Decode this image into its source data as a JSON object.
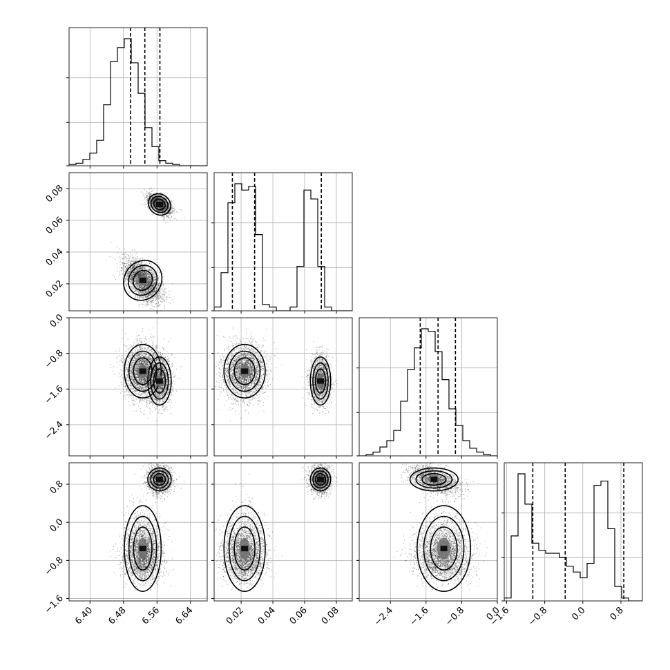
{
  "chart_data": {
    "type": "corner",
    "grid": true,
    "params": [
      {
        "ticks": [
          6.4,
          6.48,
          6.56,
          6.64
        ],
        "tick_labels": [
          "6.40",
          "6.48",
          "6.56",
          "6.64"
        ],
        "range": [
          6.35,
          6.68
        ],
        "quantiles": [
          6.497,
          6.531,
          6.567
        ],
        "hist": {
          "edges_start": 6.35,
          "bin_width": 0.0165,
          "counts": [
            1,
            2,
            5,
            10,
            20,
            48,
            82,
            93,
            100,
            81,
            57,
            30,
            15,
            4,
            2,
            1,
            0,
            0,
            0,
            0
          ]
        }
      },
      {
        "ticks": [
          0.02,
          0.04,
          0.06,
          0.08
        ],
        "tick_labels": [
          "0.02",
          "0.04",
          "0.06",
          "0.08"
        ],
        "range": [
          0.003,
          0.09
        ],
        "quantiles": [
          0.0145,
          0.0285,
          0.0705
        ],
        "hist": {
          "edges_start": 0.003,
          "bin_width": 0.00435,
          "counts": [
            3,
            30,
            85,
            100,
            95,
            98,
            60,
            5,
            3,
            0,
            0,
            3,
            35,
            95,
            88,
            35,
            3,
            0,
            0,
            0
          ]
        }
      },
      {
        "ticks": [
          -2.4,
          -1.6,
          -0.8,
          0.0
        ],
        "tick_labels": [
          "−2.4",
          "−1.6",
          "−0.8",
          "0.0"
        ],
        "range": [
          -3.1,
          0.0
        ],
        "quantiles": [
          -1.73,
          -1.33,
          -0.94
        ],
        "hist": {
          "edges_start": -3.1,
          "bin_width": 0.155,
          "counts": [
            0,
            1,
            3,
            7,
            12,
            20,
            43,
            68,
            85,
            100,
            98,
            82,
            60,
            37,
            24,
            12,
            6,
            3,
            1,
            0
          ]
        }
      },
      {
        "ticks": [
          -1.6,
          -0.8,
          0.0,
          0.8
        ],
        "tick_labels": [
          "−1.6",
          "−0.8",
          "0.0",
          "0.8"
        ],
        "range": [
          -1.65,
          1.25
        ],
        "quantiles": [
          -1.05,
          -0.37,
          0.86
        ],
        "hist": {
          "edges_start": -1.65,
          "bin_width": 0.145,
          "counts": [
            2,
            45,
            88,
            67,
            40,
            35,
            33,
            33,
            30,
            24,
            20,
            16,
            26,
            80,
            83,
            50,
            10,
            2,
            0,
            0
          ]
        }
      }
    ],
    "clusters": [
      {
        "p0": 6.526,
        "p1": 0.0222,
        "p2": -1.2,
        "p3": -0.55,
        "s0": 0.022,
        "s1": 0.0065,
        "s2": 0.3,
        "s3": 0.45,
        "corr01": -0.55,
        "weight": 0.62
      },
      {
        "p0": 6.566,
        "p1": 0.07,
        "p2": -1.42,
        "p3": 0.9,
        "s0": 0.014,
        "s1": 0.0032,
        "s2": 0.27,
        "s3": 0.12,
        "corr01": -0.5,
        "weight": 0.38
      }
    ]
  }
}
